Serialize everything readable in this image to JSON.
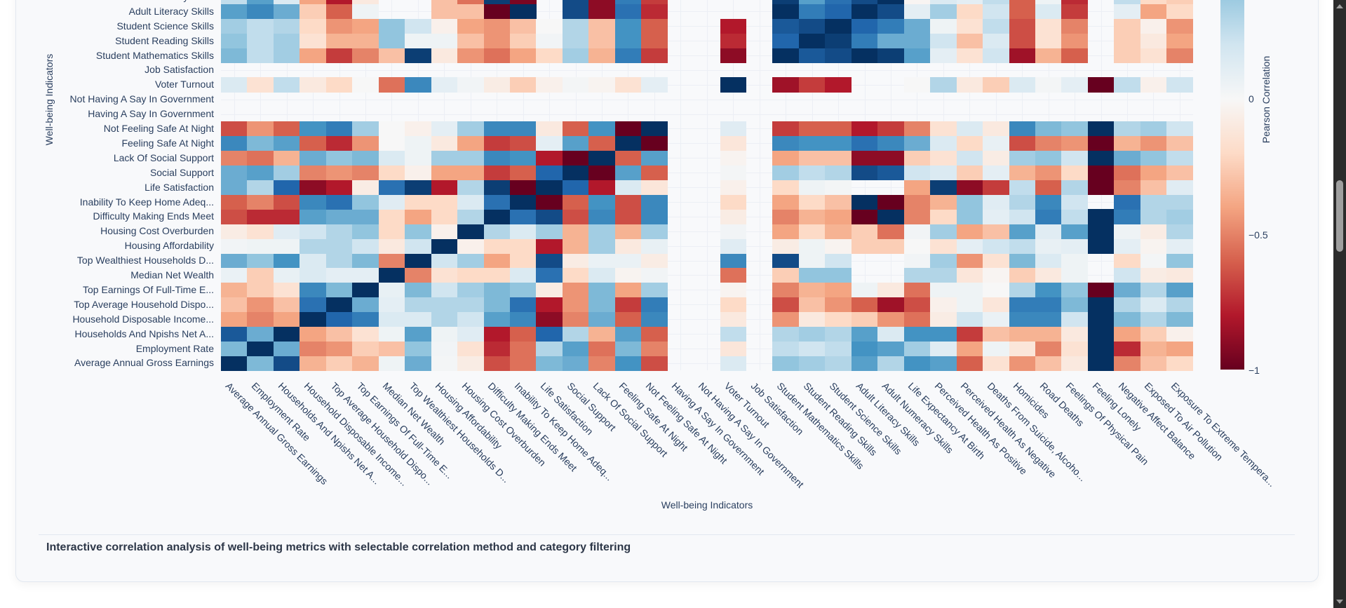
{
  "caption": "Interactive correlation analysis of well-being metrics with selectable correlation method and category filtering",
  "chart_data": {
    "type": "heatmap",
    "xlabel": "Well-being Indicators",
    "ylabel": "Well-being Indicators",
    "colorbar": {
      "title": "Pearson Correlation",
      "range": [
        -1,
        1
      ],
      "colorscale": "RdBu",
      "ticks": [
        {
          "value": 0,
          "label": "0"
        },
        {
          "value": -0.5,
          "label": "−0.5"
        },
        {
          "value": -1,
          "label": "−1"
        }
      ]
    },
    "x_categories": [
      "Average Annual Gross Earnings",
      "Employment Rate",
      "Households And Npishs Net A...",
      "Household Disposable Income...",
      "Top Average Household Dispo...",
      "Top Earnings Of Full-Time E...",
      "Median Net Wealth",
      "Top Wealthiest Households D...",
      "Housing Affordability",
      "Housing Cost Overburden",
      "Difficulty Making Ends Meet",
      "Inability To Keep Home Adeq...",
      "Life Satisfaction",
      "Social Support",
      "Lack Of Social Support",
      "Feeling Safe At Night",
      "Not Feeling Safe At Night",
      "Having A Say In Government",
      "Not Having A Say In Government",
      "Voter Turnout",
      "Job Satisfaction",
      "Student Mathematics Skills",
      "Student Reading Skills",
      "Student Science Skills",
      "Adult Literacy Skills",
      "Adult Numeracy Skills",
      "Life Expectancy At Birth",
      "Perceived Health As Positive",
      "Perceived Health As Negative",
      "Deaths From Suicide, Alcoho...",
      "Homicides",
      "Road Deaths",
      "Feelings Of Physical Pain",
      "Feeling Lonely",
      "Negative Affect Balance",
      "Exposed To Air Pollution",
      "Exposure To Extreme Tempera..."
    ],
    "y_categories_visible_bottom_to_top": [
      "Average Annual Gross Earnings",
      "Employment Rate",
      "Households And Npishs Net A...",
      "Household Disposable Income...",
      "Top Average Household Dispo...",
      "Top Earnings Of Full-Time E...",
      "Median Net Wealth",
      "Top Wealthiest Households D...",
      "Housing Affordability",
      "Housing Cost Overburden",
      "Difficulty Making Ends Meet",
      "Inability To Keep Home Adeq...",
      "Life Satisfaction",
      "Social Support",
      "Lack Of Social Support",
      "Feeling Safe At Night",
      "Not Feeling Safe At Night",
      "Having A Say In Government",
      "Not Having A Say In Government",
      "Voter Turnout",
      "Job Satisfaction",
      "Student Mathematics Skills",
      "Student Reading Skills",
      "Student Science Skills",
      "Adult Literacy Skills",
      "Adult Numeracy Skills"
    ],
    "values": [
      [
        1,
        0.45,
        0.9,
        -0.35,
        -0.25,
        -0.35,
        0.05,
        0.5,
        0.02,
        -0.08,
        -0.65,
        -0.55,
        0.45,
        0.5,
        -0.5,
        0.6,
        -0.65,
        null,
        null,
        0.15,
        null,
        0.4,
        0.35,
        0.3,
        0.55,
        0.3,
        0.6,
        0.55,
        -0.6,
        -0.15,
        -0.45,
        -0.3,
        -0.1,
        1,
        -0.5,
        -0.3,
        -0.2
      ],
      [
        0.45,
        1,
        0.5,
        -0.5,
        -0.45,
        -0.25,
        -0.3,
        0.4,
        0.03,
        -0.15,
        -0.75,
        -0.55,
        0.3,
        0.55,
        -0.55,
        0.45,
        -0.5,
        null,
        null,
        -0.12,
        null,
        0.25,
        0.2,
        0.25,
        0.6,
        0.55,
        0.35,
        0.12,
        -0.4,
        0.05,
        -0.12,
        -0.5,
        -0.15,
        1,
        -0.75,
        -0.35,
        -0.4
      ],
      [
        0.85,
        0.5,
        1,
        -0.4,
        -0.3,
        -0.15,
        0.05,
        0.55,
        0.05,
        0.12,
        -0.8,
        -0.6,
        0.8,
        0.3,
        -0.35,
        0.55,
        -0.6,
        null,
        null,
        0.25,
        null,
        0.3,
        0.35,
        0.3,
        0.55,
        0.15,
        0.6,
        0.6,
        -0.7,
        -0.3,
        -0.35,
        -0.35,
        -0.1,
        1,
        -0.4,
        -0.25,
        -0.05
      ],
      [
        -0.4,
        -0.5,
        -0.4,
        1,
        0.8,
        0.7,
        0.15,
        0.15,
        0.3,
        0.2,
        0.55,
        0.65,
        -0.9,
        -0.5,
        0.5,
        -0.6,
        0.65,
        null,
        null,
        -0.1,
        null,
        -0.45,
        -0.1,
        -0.2,
        -0.25,
        -0.45,
        -0.55,
        -0.08,
        0.2,
        0.07,
        0.65,
        0.65,
        0.2,
        1,
        0.45,
        0.3,
        0.45
      ],
      [
        -0.3,
        -0.45,
        -0.3,
        0.75,
        1,
        0.5,
        0.1,
        0.3,
        0.3,
        0.3,
        0.45,
        0.75,
        -0.8,
        -0.45,
        0.45,
        -0.7,
        0.7,
        null,
        null,
        -0.2,
        null,
        -0.65,
        -0.3,
        -0.45,
        -0.6,
        -0.85,
        -0.65,
        -0.05,
        0.05,
        -0.12,
        0.7,
        0.7,
        0.45,
        1,
        0.3,
        0.15,
        0.3
      ],
      [
        -0.35,
        -0.25,
        -0.15,
        0.65,
        0.45,
        1,
        0.08,
        0.45,
        0.2,
        0.35,
        0.45,
        0.4,
        -0.08,
        -0.45,
        0.45,
        -0.4,
        0.35,
        null,
        null,
        -0.03,
        null,
        -0.5,
        -0.35,
        -0.4,
        0.05,
        -0.1,
        -0.55,
        0.05,
        0.05,
        0,
        0.3,
        0.6,
        0.4,
        -1,
        0.5,
        0.3,
        0.55
      ],
      [
        0.07,
        -0.25,
        0.08,
        0.15,
        0.1,
        0.1,
        1,
        -0.5,
        -0.15,
        -0.2,
        -0.2,
        0.15,
        0.75,
        -0.2,
        0.15,
        -0.03,
        0.03,
        null,
        null,
        -0.55,
        null,
        -0.25,
        0.4,
        0.4,
        null,
        null,
        0.3,
        0.3,
        -0.12,
        -0.02,
        -0.25,
        -0.1,
        0.05,
        null,
        0.2,
        -0.08,
        -0.1
      ],
      [
        0.5,
        0.4,
        0.6,
        0.15,
        0.3,
        0.45,
        -0.5,
        1,
        0.2,
        0.35,
        -0.4,
        -0.2,
        0.9,
        -0.08,
        0.07,
        0.07,
        -0.08,
        null,
        null,
        0.65,
        null,
        0.9,
        0.05,
        0.2,
        null,
        null,
        0.03,
        0.35,
        -0.45,
        -0.15,
        0.45,
        0.15,
        0.05,
        null,
        -0.2,
        0.02,
        0.4
      ],
      [
        0.03,
        0.05,
        0.05,
        0.3,
        0.3,
        0.2,
        -0.1,
        0.2,
        1,
        -0.05,
        -0.2,
        -0.2,
        -0.8,
        -0.35,
        0.35,
        -0.1,
        0.08,
        null,
        null,
        0.12,
        null,
        -0.08,
        0.05,
        -0.03,
        -0.25,
        -0.25,
        0,
        -0.15,
        0.1,
        0.2,
        0.25,
        0.08,
        0.1,
        1,
        0.1,
        -0.03,
        0.1
      ],
      [
        -0.08,
        -0.15,
        0.12,
        0.2,
        0.3,
        0.4,
        -0.2,
        0.4,
        -0.05,
        1,
        0.3,
        0.15,
        0.35,
        -0.35,
        0.35,
        -0.35,
        0.35,
        null,
        null,
        0.03,
        null,
        -0.4,
        -0.2,
        -0.35,
        -0.25,
        -0.55,
        0.03,
        0.35,
        -0.4,
        -0.3,
        0.55,
        0.12,
        0.55,
        1,
        0.05,
        -0.08,
        0.3
      ],
      [
        -0.65,
        -0.75,
        -0.75,
        0.55,
        0.5,
        0.5,
        -0.2,
        -0.4,
        -0.2,
        0.3,
        1,
        0.75,
        0.9,
        -0.65,
        0.65,
        -0.65,
        0.65,
        null,
        null,
        -0.08,
        null,
        -0.5,
        -0.35,
        -0.4,
        -1,
        1,
        -0.5,
        -0.2,
        0.4,
        0.1,
        0.2,
        0.7,
        0.25,
        1,
        0.7,
        0.3,
        0.35
      ],
      [
        -0.6,
        -0.5,
        -0.65,
        0.65,
        0.75,
        0.4,
        0.12,
        -0.2,
        -0.2,
        0.15,
        0.75,
        1,
        -1,
        -0.6,
        0.6,
        -0.65,
        0.65,
        null,
        null,
        -0.2,
        null,
        -0.4,
        -0.2,
        -0.3,
        1,
        -1,
        -0.5,
        -0.35,
        0.4,
        0.12,
        0.3,
        0.65,
        0.2,
        null,
        0.75,
        0.3,
        0.3
      ],
      [
        0.5,
        0.3,
        0.8,
        -0.9,
        -0.8,
        -0.08,
        0.75,
        0.95,
        -0.8,
        0.3,
        0.95,
        -1,
        1,
        0.8,
        -0.8,
        0.15,
        -0.12,
        null,
        null,
        -0.05,
        null,
        -0.2,
        0.05,
        0.02,
        null,
        null,
        -0.4,
        0.95,
        -0.9,
        -0.7,
        0.25,
        -0.6,
        0.3,
        -1,
        -0.5,
        -0.3,
        0.12
      ],
      [
        0.5,
        0.55,
        0.35,
        -0.5,
        -0.45,
        -0.5,
        -0.2,
        -0.05,
        -0.4,
        -0.4,
        -0.7,
        -0.6,
        0.8,
        1,
        -1,
        0.55,
        -0.6,
        null,
        null,
        0.02,
        null,
        0.35,
        0.25,
        0.3,
        0.9,
        0.85,
        0.2,
        0.15,
        -0.25,
        0.1,
        -0.35,
        -0.45,
        -0.2,
        -1,
        -0.55,
        -0.4,
        -0.3
      ],
      [
        -0.5,
        -0.55,
        -0.35,
        0.5,
        0.4,
        0.45,
        0.15,
        0.05,
        0.35,
        0.35,
        0.65,
        0.6,
        -0.8,
        -1,
        1,
        -0.6,
        0.55,
        null,
        null,
        -0.03,
        null,
        -0.4,
        -0.3,
        -0.3,
        -0.9,
        -0.9,
        -0.25,
        -0.15,
        0.2,
        -0.08,
        0.35,
        0.4,
        0.2,
        1,
        0.5,
        0.4,
        0.25
      ],
      [
        0.65,
        0.45,
        0.55,
        -0.6,
        -0.75,
        -0.45,
        0,
        0.05,
        -0.1,
        -0.4,
        -0.7,
        -0.65,
        0.1,
        0.55,
        -0.6,
        1,
        -1,
        null,
        null,
        -0.12,
        null,
        0.65,
        0.6,
        0.6,
        0.75,
        0.65,
        0.5,
        0.15,
        -0.2,
        0.08,
        -0.65,
        -0.5,
        -0.45,
        -1,
        -0.35,
        -0.45,
        -0.3
      ],
      [
        -0.65,
        -0.45,
        -0.6,
        0.6,
        0.7,
        0.35,
        0,
        -0.05,
        0.1,
        0.35,
        0.65,
        0.65,
        -0.1,
        -0.6,
        0.6,
        -1,
        1,
        null,
        null,
        0.12,
        null,
        -0.7,
        -0.6,
        -0.6,
        -0.8,
        -0.7,
        -0.5,
        -0.15,
        0.15,
        -0.1,
        0.65,
        0.45,
        0.4,
        1,
        0.3,
        0.35,
        0.2
      ],
      [
        null,
        null,
        null,
        null,
        null,
        null,
        null,
        null,
        null,
        null,
        null,
        null,
        null,
        null,
        null,
        null,
        null,
        null,
        null,
        null,
        null,
        null,
        null,
        null,
        null,
        null,
        null,
        null,
        null,
        null,
        null,
        null,
        null,
        null,
        null,
        null,
        null
      ],
      [
        null,
        null,
        null,
        null,
        null,
        null,
        null,
        null,
        null,
        null,
        null,
        null,
        null,
        null,
        null,
        null,
        null,
        null,
        null,
        null,
        null,
        null,
        null,
        null,
        null,
        null,
        null,
        null,
        null,
        null,
        null,
        null,
        null,
        null,
        null,
        null,
        null
      ],
      [
        0.15,
        -0.15,
        0.25,
        -0.1,
        -0.2,
        0,
        -0.55,
        0.65,
        0.1,
        0.03,
        -0.08,
        -0.25,
        -0.05,
        0.02,
        -0.03,
        -0.15,
        0.1,
        null,
        null,
        1,
        null,
        -0.85,
        -0.7,
        -0.8,
        null,
        null,
        0,
        0.3,
        -0.1,
        -0.25,
        0.15,
        0.02,
        0.1,
        -1,
        0.25,
        -0.05,
        0.2
      ],
      [
        null,
        null,
        null,
        null,
        null,
        null,
        null,
        null,
        null,
        null,
        null,
        null,
        null,
        null,
        null,
        null,
        null,
        null,
        null,
        null,
        null,
        null,
        null,
        null,
        null,
        null,
        null,
        null,
        null,
        null,
        null,
        null,
        null,
        null,
        null,
        null,
        null
      ],
      [
        0.45,
        0.25,
        0.35,
        -0.4,
        -0.7,
        -0.5,
        -0.3,
        0.95,
        -0.1,
        -0.45,
        -0.55,
        -0.4,
        -0.2,
        0.35,
        -0.35,
        0.7,
        -0.7,
        null,
        null,
        -0.9,
        null,
        1,
        0.85,
        0.9,
        1,
        0.95,
        0.55,
        0.1,
        -0.15,
        0.2,
        -0.85,
        -0.35,
        -0.6,
        null,
        -0.25,
        -0.15,
        -0.5
      ],
      [
        0.4,
        0.25,
        0.35,
        -0.15,
        -0.35,
        -0.35,
        0.4,
        0.05,
        0.05,
        -0.3,
        -0.45,
        -0.25,
        0.03,
        0.3,
        -0.3,
        0.6,
        -0.6,
        null,
        null,
        -0.75,
        null,
        0.8,
        1,
        0.95,
        0.7,
        0.5,
        0.5,
        0.2,
        -0.3,
        0.15,
        -0.65,
        -0.15,
        -0.45,
        null,
        -0.25,
        -0.1,
        -0.4
      ],
      [
        0.35,
        0.25,
        0.3,
        -0.2,
        -0.45,
        -0.4,
        0.4,
        0.2,
        -0.05,
        -0.4,
        -0.45,
        -0.3,
        0,
        0.3,
        -0.3,
        0.6,
        -0.6,
        null,
        null,
        -0.8,
        null,
        0.85,
        0.9,
        1,
        0.8,
        0.7,
        0.5,
        0.05,
        -0.15,
        0.25,
        -0.65,
        -0.15,
        -0.5,
        null,
        -0.25,
        -0.05,
        -0.45
      ],
      [
        0.55,
        0.65,
        0.5,
        -0.25,
        -0.6,
        0.05,
        null,
        null,
        -0.3,
        -0.3,
        -1,
        1,
        null,
        0.9,
        -0.9,
        0.75,
        -0.75,
        null,
        null,
        null,
        null,
        1,
        0.7,
        0.8,
        1,
        0.9,
        0.1,
        0.35,
        -0.2,
        0.2,
        -0.6,
        0.15,
        -0.7,
        null,
        0.1,
        -0.4,
        -0.2
      ],
      [
        0.25,
        0.55,
        0.15,
        -0.4,
        -0.8,
        -0.1,
        null,
        null,
        -0.3,
        -0.55,
        0.95,
        -0.95,
        null,
        0.9,
        -0.9,
        0.7,
        -0.7,
        null,
        null,
        null,
        null,
        0.95,
        0.55,
        0.75,
        0.9,
        1,
        -0.02,
        0.15,
        0.1,
        0.25,
        -0.6,
        0.05,
        -0.75,
        null,
        0.25,
        -0.2,
        -0.25
      ]
    ]
  },
  "colors": {
    "rdbu": [
      "#67001f",
      "#b2182b",
      "#d6604d",
      "#f4a582",
      "#fddbc7",
      "#f7f7f7",
      "#d1e5f0",
      "#92c5de",
      "#4393c3",
      "#2166ac",
      "#053061"
    ]
  }
}
